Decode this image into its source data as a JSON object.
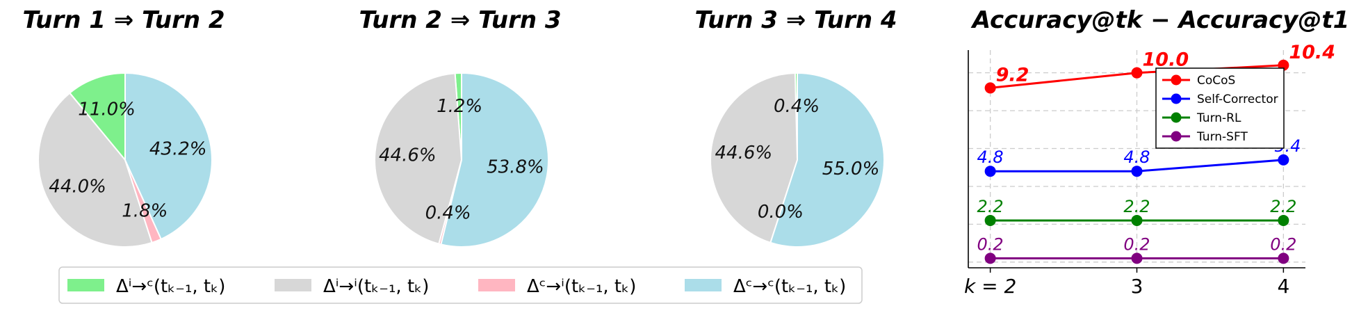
{
  "pie_legend": [
    {
      "label": "Δⁱ→ᶜ(tₖ₋₁, tₖ)",
      "color": "#7ef08c"
    },
    {
      "label": "Δⁱ→ⁱ(tₖ₋₁, tₖ)",
      "color": "#d7d7d7"
    },
    {
      "label": "Δᶜ→ⁱ(tₖ₋₁, tₖ)",
      "color": "#ffb6c1"
    },
    {
      "label": "Δᶜ→ᶜ(tₖ₋₁, tₖ)",
      "color": "#abdde9"
    }
  ],
  "chart_data": [
    {
      "type": "pie",
      "title": "Turn 1 ⇒ Turn 2",
      "slices": [
        {
          "category": "i→c",
          "value": 11.0,
          "label": "11.0%"
        },
        {
          "category": "i→i",
          "value": 44.0,
          "label": "44.0%"
        },
        {
          "category": "c→i",
          "value": 1.8,
          "label": "1.8%"
        },
        {
          "category": "c→c",
          "value": 43.2,
          "label": "43.2%"
        }
      ]
    },
    {
      "type": "pie",
      "title": "Turn 2 ⇒ Turn 3",
      "slices": [
        {
          "category": "i→c",
          "value": 1.2,
          "label": "1.2%"
        },
        {
          "category": "i→i",
          "value": 44.6,
          "label": "44.6%"
        },
        {
          "category": "c→i",
          "value": 0.4,
          "label": "0.4%"
        },
        {
          "category": "c→c",
          "value": 53.8,
          "label": "53.8%"
        }
      ]
    },
    {
      "type": "pie",
      "title": "Turn 3 ⇒ Turn 4",
      "slices": [
        {
          "category": "i→c",
          "value": 0.4,
          "label": "0.4%"
        },
        {
          "category": "i→i",
          "value": 44.6,
          "label": "44.6%"
        },
        {
          "category": "c→i",
          "value": 0.0,
          "label": "0.0%"
        },
        {
          "category": "c→c",
          "value": 55.0,
          "label": "55.0%"
        }
      ]
    },
    {
      "type": "line",
      "title": "Accuracy@tk − Accuracy@t1",
      "x": [
        2,
        3,
        4
      ],
      "x_tick_labels": [
        "k = 2",
        "3",
        "4"
      ],
      "grid": true,
      "legend_position": "top-right",
      "series": [
        {
          "name": "CoCoS",
          "color": "#ff0000",
          "values": [
            9.2,
            10.0,
            10.4
          ],
          "labels": [
            "9.2",
            "10.0",
            "10.4"
          ]
        },
        {
          "name": "Self-Corrector",
          "color": "#0000ff",
          "values": [
            4.8,
            4.8,
            5.4
          ],
          "labels": [
            "4.8",
            "4.8",
            "5.4"
          ]
        },
        {
          "name": "Turn-RL",
          "color": "#008000",
          "values": [
            2.2,
            2.2,
            2.2
          ],
          "labels": [
            "2.2",
            "2.2",
            "2.2"
          ]
        },
        {
          "name": "Turn-SFT",
          "color": "#800080",
          "values": [
            0.2,
            0.2,
            0.2
          ],
          "labels": [
            "0.2",
            "0.2",
            "0.2"
          ]
        }
      ]
    }
  ]
}
